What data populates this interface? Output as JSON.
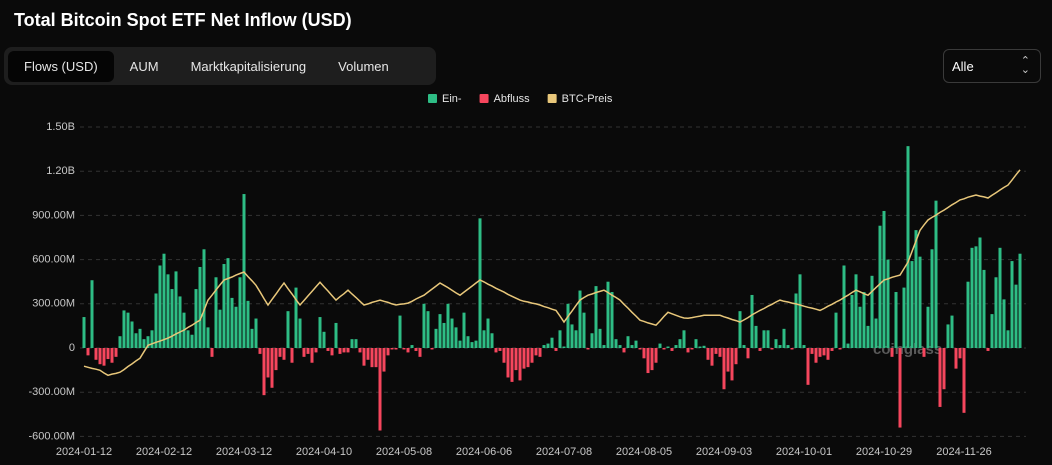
{
  "ui": {
    "tabs": [
      "Flows (USD)",
      "AUM",
      "Marktkapitalisierung",
      "Volumen"
    ],
    "range_select": "Alle"
  },
  "chart_data": {
    "type": "bar",
    "title": "Total Bitcoin Spot ETF Net Inflow (USD)",
    "watermark": "coinglass",
    "grid": true,
    "categories": [
      "2024-01-12",
      null,
      null,
      null,
      null,
      null,
      null,
      null,
      null,
      null,
      null,
      null,
      null,
      null,
      null,
      null,
      null,
      null,
      null,
      null,
      "2024-02-12",
      null,
      null,
      null,
      null,
      null,
      null,
      null,
      null,
      null,
      null,
      null,
      null,
      null,
      null,
      null,
      null,
      null,
      null,
      null,
      "2024-03-12",
      null,
      null,
      null,
      null,
      null,
      null,
      null,
      null,
      null,
      null,
      null,
      null,
      null,
      null,
      null,
      null,
      null,
      null,
      null,
      "2024-04-10",
      null,
      null,
      null,
      null,
      null,
      null,
      null,
      null,
      null,
      null,
      null,
      null,
      null,
      null,
      null,
      null,
      null,
      null,
      null,
      "2024-05-08",
      null,
      null,
      null,
      null,
      null,
      null,
      null,
      null,
      null,
      null,
      null,
      null,
      null,
      null,
      null,
      null,
      null,
      null,
      null,
      "2024-06-06",
      null,
      null,
      null,
      null,
      null,
      null,
      null,
      null,
      null,
      null,
      null,
      null,
      null,
      null,
      null,
      null,
      null,
      null,
      null,
      "2024-07-08",
      null,
      null,
      null,
      null,
      null,
      null,
      null,
      null,
      null,
      null,
      null,
      null,
      null,
      null,
      null,
      null,
      null,
      null,
      null,
      "2024-08-05",
      null,
      null,
      null,
      null,
      null,
      null,
      null,
      null,
      null,
      null,
      null,
      null,
      null,
      null,
      null,
      null,
      null,
      null,
      null,
      "2024-09-03",
      null,
      null,
      null,
      null,
      null,
      null,
      null,
      null,
      null,
      null,
      null,
      null,
      null,
      null,
      null,
      null,
      null,
      null,
      null,
      "2024-10-01",
      null,
      null,
      null,
      null,
      null,
      null,
      null,
      null,
      null,
      null,
      null,
      null,
      null,
      null,
      null,
      null,
      null,
      null,
      null,
      "2024-10-29",
      null,
      null,
      null,
      null,
      null,
      null,
      null,
      null,
      null,
      null,
      null,
      null,
      null,
      null,
      null,
      null,
      null,
      null,
      null,
      "2024-11-26",
      null,
      null,
      null,
      null,
      null,
      null,
      null,
      null,
      null,
      null,
      null,
      null,
      null,
      null
    ],
    "ylim": [
      -600000000.0,
      1500000000.0
    ],
    "yticks": [
      {
        "value": -600000000.0,
        "label": "-600.00M"
      },
      {
        "value": -300000000.0,
        "label": "-300.00M"
      },
      0,
      {
        "value": 300000000.0,
        "label": "300.00M"
      },
      {
        "value": 600000000.0,
        "label": "600.00M"
      },
      {
        "value": 900000000.0,
        "label": "900.00M"
      },
      {
        "value": 1200000000.0,
        "label": "1.20B"
      },
      {
        "value": 1500000000.0,
        "label": "1.50B"
      }
    ],
    "y2lim": [
      27800,
      109300
    ],
    "series": [
      {
        "type": "bar",
        "name": "Ein-",
        "color": "#2ebd85",
        "negative_name": "Abfluss",
        "negative_color": "#f6465d",
        "values": [
          210000000.0,
          -50000000.0,
          460000000.0,
          -80000000.0,
          -110000000.0,
          -120000000.0,
          -75000000.0,
          -100000000.0,
          -60000000.0,
          80000000.0,
          255000000.0,
          240000000.0,
          180000000.0,
          100000000.0,
          130000000.0,
          60000000.0,
          80000000.0,
          120000000.0,
          370000000.0,
          560000000.0,
          640000000.0,
          500000000.0,
          400000000.0,
          520000000.0,
          350000000.0,
          240000000.0,
          120000000.0,
          90000000.0,
          400000000.0,
          550000000.0,
          670000000.0,
          140000000.0,
          -60000000.0,
          480000000.0,
          260000000.0,
          570000000.0,
          610000000.0,
          340000000.0,
          280000000.0,
          480000000.0,
          1045000000.0,
          320000000.0,
          130000000.0,
          200000000.0,
          -40000000.0,
          -320000000.0,
          -200000000.0,
          -270000000.0,
          -150000000.0,
          -60000000.0,
          -80000000.0,
          250000000.0,
          -100000000.0,
          410000000.0,
          200000000.0,
          -60000000.0,
          -40000000.0,
          -100000000.0,
          -30000000.0,
          210000000.0,
          110000000.0,
          -20000000.0,
          -50000000.0,
          170000000.0,
          -40000000.0,
          -30000000.0,
          -30000000.0,
          60000000.0,
          60000000.0,
          -30000000.0,
          -120000000.0,
          -80000000.0,
          -130000000.0,
          -130000000.0,
          -560000000.0,
          -160000000.0,
          -50000000.0,
          -10000000.0,
          -10000000.0,
          220000000.0,
          -10000000.0,
          -30000000.0,
          20000000.0,
          -20000000.0,
          -60000000.0,
          300000000.0,
          250000000.0,
          -10000000.0,
          130000000.0,
          230000000.0,
          170000000.0,
          300000000.0,
          200000000.0,
          140000000.0,
          50000000.0,
          240000000.0,
          80000000.0,
          40000000.0,
          50000000.0,
          880000000.0,
          120000000.0,
          200000000.0,
          100000000.0,
          -30000000.0,
          -20000000.0,
          -100000000.0,
          -200000000.0,
          -230000000.0,
          -150000000.0,
          -220000000.0,
          -140000000.0,
          -130000000.0,
          -100000000.0,
          -50000000.0,
          -60000000.0,
          20000000.0,
          30000000.0,
          70000000.0,
          -20000000.0,
          120000000.0,
          10000000.0,
          300000000.0,
          160000000.0,
          120000000.0,
          390000000.0,
          240000000.0,
          -10000000.0,
          100000000.0,
          420000000.0,
          130000000.0,
          20000000.0,
          450000000.0,
          380000000.0,
          60000000.0,
          20000000.0,
          -30000000.0,
          80000000.0,
          20000000.0,
          50000000.0,
          -10000000.0,
          -70000000.0,
          -170000000.0,
          -150000000.0,
          -100000000.0,
          30000000.0,
          -10000000.0,
          10000000.0,
          -20000000.0,
          20000000.0,
          60000000.0,
          120000000.0,
          -30000000.0,
          -10000000.0,
          60000000.0,
          10000000.0,
          15000000.0,
          -80000000.0,
          -120000000.0,
          -40000000.0,
          -60000000.0,
          -280000000.0,
          -160000000.0,
          -220000000.0,
          -110000000.0,
          250000000.0,
          20000000.0,
          -70000000.0,
          360000000.0,
          150000000.0,
          -20000000.0,
          120000000.0,
          120000000.0,
          -10000000.0,
          60000000.0,
          20000000.0,
          130000000.0,
          20000000.0,
          -10000000.0,
          370000000.0,
          500000000.0,
          20000000.0,
          -250000000.0,
          -40000000.0,
          -100000000.0,
          -60000000.0,
          -50000000.0,
          -80000000.0,
          -20000000.0,
          240000000.0,
          -10000000.0,
          560000000.0,
          30000000.0,
          360000000.0,
          500000000.0,
          280000000.0,
          380000000.0,
          150000000.0,
          490000000.0,
          200000000.0,
          830000000.0,
          930000000.0,
          600000000.0,
          -60000000.0,
          380000000.0,
          -540000000.0,
          410000000.0,
          1370000000.0,
          590000000.0,
          800000000.0,
          620000000.0,
          -60000000.0,
          280000000.0,
          670000000.0,
          1000000000.0,
          -400000000.0,
          -280000000.0,
          160000000.0,
          220000000.0,
          -140000000.0,
          -70000000.0,
          -440000000.0,
          450000000.0,
          680000000.0,
          690000000.0,
          750000000.0,
          530000000.0,
          -20000000.0,
          230000000.0,
          480000000.0,
          680000000.0,
          330000000.0,
          120000000.0,
          590000000.0,
          430000000.0,
          640000000.0
        ]
      },
      {
        "type": "line",
        "name": "BTC-Preis",
        "color": "#e8c77a",
        "axis": "y2",
        "values": [
          46300,
          46000,
          45700,
          45500,
          45200,
          44500,
          43900,
          44200,
          44400,
          44700,
          45400,
          46200,
          46900,
          47700,
          48400,
          50100,
          51800,
          52200,
          52600,
          52900,
          53300,
          53700,
          54200,
          54800,
          55300,
          55800,
          56500,
          57100,
          57800,
          58400,
          61000,
          63700,
          65000,
          66400,
          67700,
          69000,
          69400,
          69800,
          70300,
          70700,
          71100,
          69900,
          68800,
          67600,
          65900,
          64100,
          62400,
          63900,
          65300,
          66800,
          68200,
          66700,
          65300,
          63800,
          62400,
          63600,
          64800,
          66000,
          67200,
          68400,
          67200,
          66100,
          64900,
          63700,
          64600,
          65400,
          66300,
          65300,
          64400,
          63400,
          62400,
          62700,
          63100,
          63400,
          63700,
          63400,
          63100,
          62700,
          62400,
          62600,
          62700,
          62900,
          63400,
          64000,
          64500,
          65000,
          65800,
          66600,
          67400,
          68200,
          67600,
          67000,
          66300,
          65600,
          65000,
          65800,
          66600,
          67400,
          68200,
          69000,
          68500,
          67900,
          67400,
          66800,
          66300,
          65800,
          65200,
          64700,
          64200,
          63700,
          63400,
          63200,
          62900,
          62700,
          62400,
          62000,
          61700,
          61300,
          61000,
          59500,
          57900,
          59400,
          60800,
          62300,
          63700,
          64400,
          65000,
          65300,
          65700,
          66000,
          66300,
          65700,
          65000,
          64400,
          63700,
          62600,
          61600,
          60500,
          59500,
          58400,
          58100,
          57700,
          57400,
          57100,
          58200,
          59400,
          60500,
          60100,
          59700,
          59300,
          59000,
          58900,
          59100,
          59300,
          59500,
          59700,
          59700,
          59700,
          59700,
          59700,
          59300,
          59000,
          58600,
          58300,
          57900,
          58500,
          59100,
          59800,
          60400,
          61000,
          61500,
          62100,
          62600,
          63200,
          63700,
          63400,
          63200,
          62900,
          62700,
          62400,
          62100,
          61800,
          61600,
          61300,
          61000,
          61500,
          62100,
          62600,
          63200,
          63700,
          64400,
          65000,
          65700,
          66300,
          65900,
          65400,
          65000,
          66000,
          67000,
          68000,
          69000,
          69300,
          69700,
          70000,
          70300,
          72000,
          73700,
          76500,
          79300,
          82100,
          83500,
          84800,
          85500,
          86100,
          86800,
          87400,
          88100,
          88800,
          89400,
          90100,
          90400,
          90800,
          91100,
          91400,
          91100,
          90900,
          90600,
          91300,
          92000,
          92700,
          93400,
          94000,
          95300,
          96700,
          98000
        ]
      }
    ]
  }
}
